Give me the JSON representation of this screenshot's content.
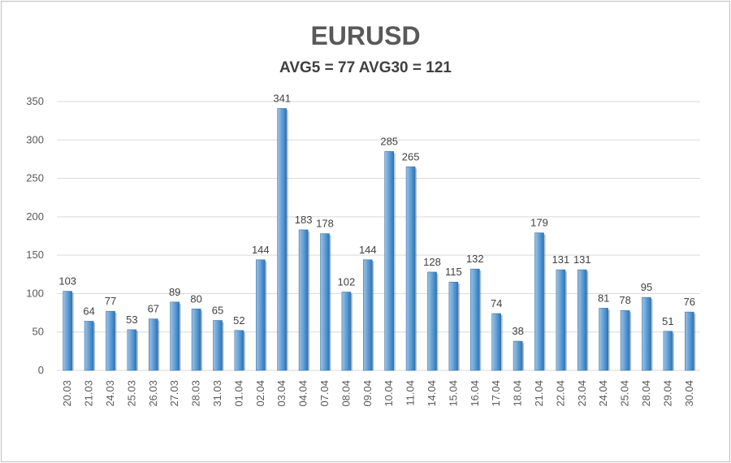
{
  "chart_data": {
    "type": "bar",
    "title": "EURUSD",
    "subtitle": "AVG5 = 77 AVG30 = 121",
    "categories": [
      "20.03",
      "21.03",
      "24.03",
      "25.03",
      "26.03",
      "27.03",
      "28.03",
      "31.03",
      "01.04",
      "02.04",
      "03.04",
      "04.04",
      "07.04",
      "08.04",
      "09.04",
      "10.04",
      "11.04",
      "14.04",
      "15.04",
      "16.04",
      "17.04",
      "18.04",
      "21.04",
      "22.04",
      "23.04",
      "24.04",
      "25.04",
      "28.04",
      "29.04",
      "30.04"
    ],
    "values": [
      103,
      64,
      77,
      53,
      67,
      89,
      80,
      65,
      52,
      144,
      341,
      183,
      178,
      102,
      144,
      285,
      265,
      128,
      115,
      132,
      74,
      38,
      179,
      131,
      131,
      81,
      78,
      95,
      51,
      76
    ],
    "ylim": [
      0,
      350
    ],
    "yticks": [
      0,
      50,
      100,
      150,
      200,
      250,
      300,
      350
    ],
    "grid": true,
    "colors": {
      "bar": "#5b9bd5",
      "bar_light": "#9dc3e6",
      "bar_dark": "#2e75b6",
      "grid": "#d9d9d9"
    }
  }
}
